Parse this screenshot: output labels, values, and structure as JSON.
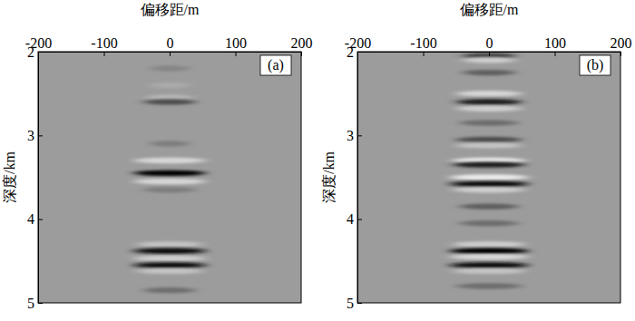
{
  "chart_data": [
    {
      "type": "seismic_image",
      "label": "(a)",
      "x_label": "偏移距/m",
      "y_label": "深度/km",
      "xlim": [
        -200,
        200
      ],
      "xticks": [
        -200,
        -100,
        0,
        100,
        200
      ],
      "ylim": [
        2,
        5
      ],
      "yticks": [
        2,
        3,
        4,
        5
      ],
      "clim": [
        -1,
        1
      ],
      "events": {
        "depth": [
          2.2,
          2.4,
          2.55,
          2.6,
          3.1,
          3.3,
          3.45,
          3.55,
          3.65,
          4.3,
          4.38,
          4.47,
          4.55,
          4.62,
          4.85
        ],
        "half_width": [
          30,
          30,
          35,
          40,
          30,
          55,
          55,
          55,
          40,
          50,
          55,
          55,
          55,
          50,
          40
        ],
        "amplitude": [
          -0.15,
          0.15,
          0.3,
          -0.5,
          -0.2,
          0.6,
          -1.0,
          0.6,
          -0.2,
          0.4,
          -0.9,
          0.5,
          -0.9,
          0.4,
          -0.3
        ]
      }
    },
    {
      "type": "seismic_image",
      "label": "(b)",
      "x_label": "偏移距/m",
      "y_label": "深度/km",
      "xlim": [
        -200,
        200
      ],
      "xticks": [
        -200,
        -100,
        0,
        100,
        200
      ],
      "ylim": [
        2,
        5
      ],
      "yticks": [
        2,
        3,
        4,
        5
      ],
      "clim": [
        -1,
        1
      ],
      "events": {
        "depth": [
          2.05,
          2.1,
          2.25,
          2.5,
          2.6,
          2.68,
          2.85,
          3.05,
          3.12,
          3.3,
          3.35,
          3.5,
          3.58,
          3.65,
          3.85,
          4.05,
          4.3,
          4.38,
          4.45,
          4.55,
          4.62,
          4.8
        ],
        "half_width": [
          40,
          40,
          40,
          50,
          50,
          50,
          45,
          50,
          50,
          55,
          55,
          60,
          60,
          55,
          45,
          45,
          55,
          60,
          60,
          60,
          55,
          50
        ],
        "amplitude": [
          -0.6,
          0.5,
          -0.4,
          0.6,
          -0.8,
          0.5,
          -0.3,
          -0.5,
          0.4,
          0.8,
          -0.8,
          0.8,
          -0.9,
          0.5,
          -0.4,
          -0.3,
          0.5,
          -1.0,
          0.6,
          -0.9,
          0.4,
          -0.3
        ]
      }
    }
  ]
}
